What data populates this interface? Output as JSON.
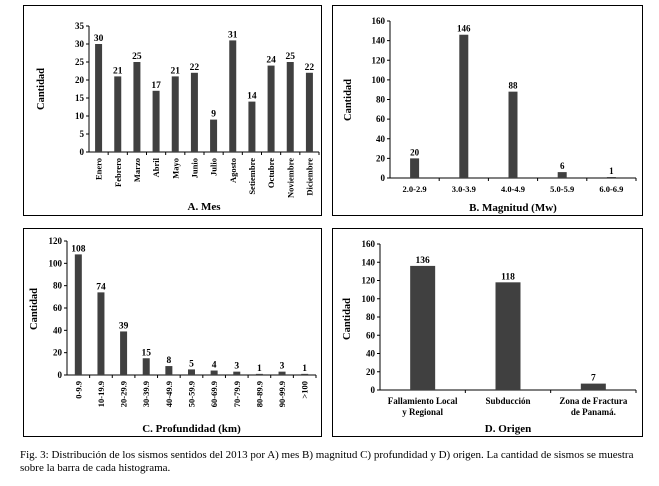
{
  "chart_data": [
    {
      "id": "A",
      "type": "bar",
      "title": "A. Mes",
      "ylabel": "Cantidad",
      "xlabel": "",
      "ylim": [
        0,
        35
      ],
      "yticks": [
        0,
        5,
        10,
        15,
        20,
        25,
        30,
        35
      ],
      "categories": [
        "Enero",
        "Febrero",
        "Marzo",
        "Abril",
        "Mayo",
        "Junio",
        "Julio",
        "Agosto",
        "Setiembre",
        "Octubre",
        "Noviembre",
        "Diciembre"
      ],
      "values": [
        30,
        21,
        25,
        17,
        21,
        22,
        9,
        31,
        14,
        24,
        25,
        22
      ],
      "bar_color": "#404040",
      "grid": false
    },
    {
      "id": "B",
      "type": "bar",
      "title": "B. Magnitud (Mw)",
      "ylabel": "Cantidad",
      "xlabel": "",
      "ylim": [
        0,
        160
      ],
      "yticks": [
        0,
        20,
        40,
        60,
        80,
        100,
        120,
        140,
        160
      ],
      "categories": [
        "2.0-2.9",
        "3.0-3.9",
        "4.0-4.9",
        "5.0-5.9",
        "6.0-6.9"
      ],
      "values": [
        20,
        146,
        88,
        6,
        1
      ],
      "bar_color": "#404040",
      "grid": false
    },
    {
      "id": "C",
      "type": "bar",
      "title": "C. Profundidad (km)",
      "ylabel": "Cantidad",
      "xlabel": "",
      "ylim": [
        0,
        120
      ],
      "yticks": [
        0,
        20,
        40,
        60,
        80,
        100,
        120
      ],
      "categories": [
        "0-9.9",
        "10-19.9",
        "20-29.9",
        "30-39.9",
        "40-49.9",
        "50-59.9",
        "60-69.9",
        "70-79.9",
        "80-89.9",
        "90-99.9",
        ">100"
      ],
      "values": [
        108,
        74,
        39,
        15,
        8,
        5,
        4,
        3,
        1,
        3,
        1
      ],
      "bar_color": "#404040",
      "grid": false
    },
    {
      "id": "D",
      "type": "bar",
      "title": "D. Origen",
      "ylabel": "Cantidad",
      "xlabel": "",
      "ylim": [
        0,
        160
      ],
      "yticks": [
        0,
        20,
        40,
        60,
        80,
        100,
        120,
        140,
        160
      ],
      "categories": [
        [
          "Fallamiento Local",
          "y Regional"
        ],
        [
          "Subducción"
        ],
        [
          "Zona de Fractura",
          "de Panamá."
        ]
      ],
      "values": [
        136,
        118,
        7
      ],
      "bar_color": "#404040",
      "grid": false
    }
  ],
  "caption": "Fig. 3: Distribución de los sismos sentidos del 2013 por A) mes B) magnitud C) profundidad y D) origen. La cantidad de sismos se muestra sobre la barra de cada histograma."
}
